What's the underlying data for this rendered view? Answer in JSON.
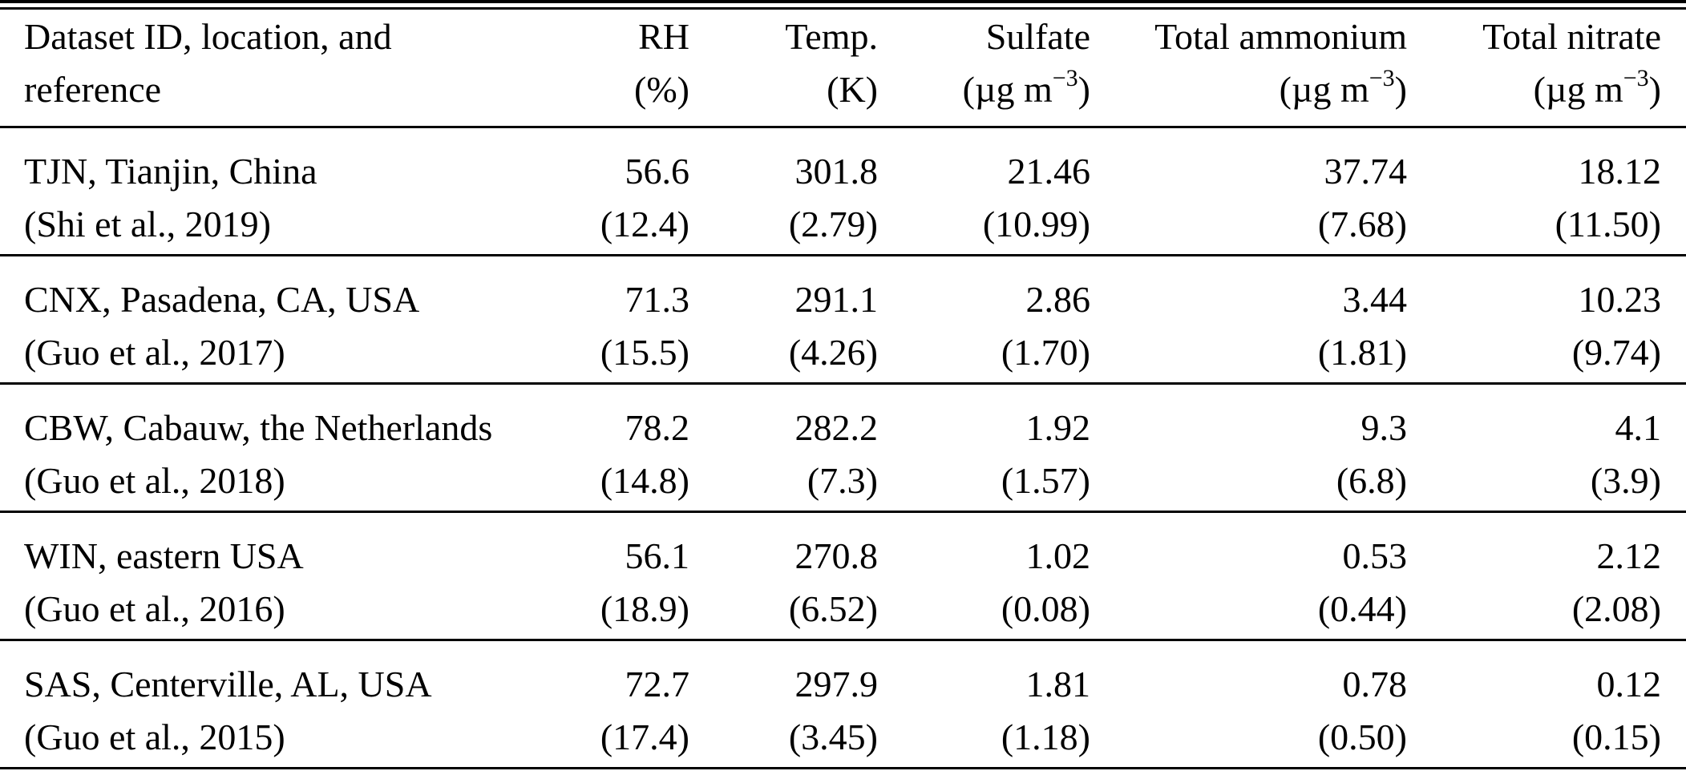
{
  "colors": {
    "background": "#ffffff",
    "text": "#000000",
    "rule": "#000000"
  },
  "table": {
    "header": [
      {
        "line1": "Dataset ID, location, and",
        "line2_pre": "reference",
        "line2_sup": "",
        "line2_post": ""
      },
      {
        "line1": "RH",
        "line2_pre": "(%)",
        "line2_sup": "",
        "line2_post": ""
      },
      {
        "line1": "Temp.",
        "line2_pre": "(K)",
        "line2_sup": "",
        "line2_post": ""
      },
      {
        "line1": "Sulfate",
        "line2_pre": "(µg m",
        "line2_sup": "−3",
        "line2_post": ")"
      },
      {
        "line1": "Total ammonium",
        "line2_pre": "(µg m",
        "line2_sup": "−3",
        "line2_post": ")"
      },
      {
        "line1": "Total nitrate",
        "line2_pre": "(µg m",
        "line2_sup": "−3",
        "line2_post": ")"
      }
    ],
    "rows": [
      {
        "cells": [
          {
            "line1": "TJN, Tianjin, China",
            "line2": "(Shi et al., 2019)"
          },
          {
            "line1": "56.6",
            "line2": "(12.4)"
          },
          {
            "line1": "301.8",
            "line2": "(2.79)"
          },
          {
            "line1": "21.46",
            "line2": "(10.99)"
          },
          {
            "line1": "37.74",
            "line2": "(7.68)"
          },
          {
            "line1": "18.12",
            "line2": "(11.50)"
          }
        ]
      },
      {
        "cells": [
          {
            "line1": "CNX, Pasadena, CA, USA",
            "line2": "(Guo et al., 2017)"
          },
          {
            "line1": "71.3",
            "line2": "(15.5)"
          },
          {
            "line1": "291.1",
            "line2": "(4.26)"
          },
          {
            "line1": "2.86",
            "line2": "(1.70)"
          },
          {
            "line1": "3.44",
            "line2": "(1.81)"
          },
          {
            "line1": "10.23",
            "line2": "(9.74)"
          }
        ]
      },
      {
        "cells": [
          {
            "line1": "CBW, Cabauw, the Netherlands",
            "line2": "(Guo et al., 2018)"
          },
          {
            "line1": "78.2",
            "line2": "(14.8)"
          },
          {
            "line1": "282.2",
            "line2": "(7.3)"
          },
          {
            "line1": "1.92",
            "line2": "(1.57)"
          },
          {
            "line1": "9.3",
            "line2": "(6.8)"
          },
          {
            "line1": "4.1",
            "line2": "(3.9)"
          }
        ]
      },
      {
        "cells": [
          {
            "line1": "WIN, eastern USA",
            "line2": "(Guo et al., 2016)"
          },
          {
            "line1": "56.1",
            "line2": "(18.9)"
          },
          {
            "line1": "270.8",
            "line2": "(6.52)"
          },
          {
            "line1": "1.02",
            "line2": "(0.08)"
          },
          {
            "line1": "0.53",
            "line2": "(0.44)"
          },
          {
            "line1": "2.12",
            "line2": "(2.08)"
          }
        ]
      },
      {
        "cells": [
          {
            "line1": "SAS, Centerville, AL, USA",
            "line2": "(Guo et al., 2015)"
          },
          {
            "line1": "72.7",
            "line2": "(17.4)"
          },
          {
            "line1": "297.9",
            "line2": "(3.45)"
          },
          {
            "line1": "1.81",
            "line2": "(1.18)"
          },
          {
            "line1": "0.78",
            "line2": "(0.50)"
          },
          {
            "line1": "0.12",
            "line2": "(0.15)"
          }
        ]
      }
    ]
  }
}
